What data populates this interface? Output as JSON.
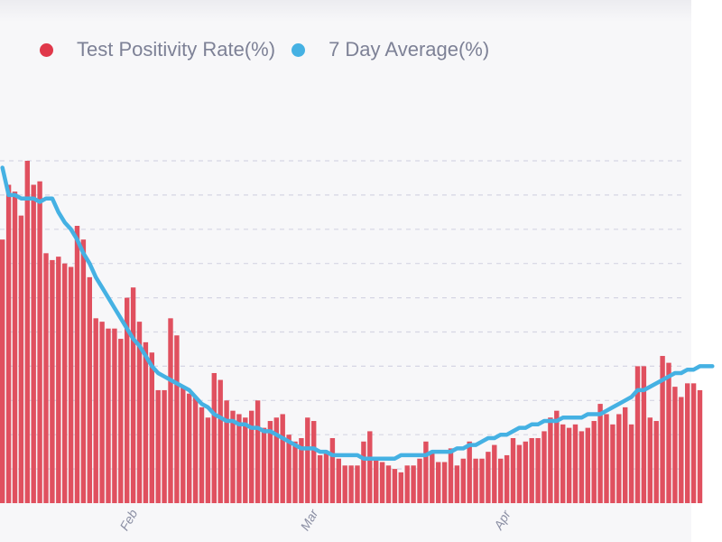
{
  "chart_data": {
    "type": "bar",
    "title": "",
    "xlabel": "",
    "ylabel": "",
    "y_units_note": "values expressed in gridline units (y-axis tick labels not visible)",
    "ylim": [
      0,
      10
    ],
    "grid": true,
    "legend_position": "top-left",
    "x_ticks": [
      {
        "label": "Feb",
        "index": 20
      },
      {
        "label": "Mar",
        "index": 49
      },
      {
        "label": "Apr",
        "index": 80
      }
    ],
    "series": [
      {
        "name": "Test Positivity Rate(%)",
        "kind": "bar",
        "color": "#e0505f",
        "values": [
          7.7,
          9.3,
          9.1,
          8.4,
          10.0,
          9.3,
          9.4,
          7.3,
          7.1,
          7.2,
          7.0,
          6.9,
          8.1,
          7.7,
          6.6,
          5.4,
          5.3,
          5.1,
          5.1,
          4.8,
          6.0,
          6.3,
          5.3,
          4.7,
          4.4,
          3.3,
          3.3,
          5.4,
          4.9,
          3.4,
          3.2,
          3.1,
          2.8,
          2.5,
          3.8,
          3.6,
          3.0,
          2.7,
          2.6,
          2.5,
          2.7,
          3.0,
          2.2,
          2.4,
          2.5,
          2.6,
          2.0,
          1.8,
          1.9,
          2.5,
          2.4,
          1.4,
          1.5,
          1.9,
          1.3,
          1.1,
          1.1,
          1.1,
          1.8,
          2.1,
          1.3,
          1.2,
          1.1,
          1.0,
          0.9,
          1.1,
          1.1,
          1.3,
          1.8,
          1.5,
          1.2,
          1.2,
          1.6,
          1.1,
          1.3,
          1.8,
          1.3,
          1.3,
          1.5,
          1.7,
          1.3,
          1.4,
          1.9,
          1.7,
          1.8,
          1.9,
          1.9,
          2.1,
          2.5,
          2.7,
          2.3,
          2.2,
          2.3,
          2.1,
          2.2,
          2.4,
          2.9,
          2.6,
          2.3,
          2.6,
          2.8,
          2.3,
          4.0,
          4.0,
          2.5,
          2.4,
          4.3,
          4.1,
          3.4,
          3.1,
          3.5,
          3.5,
          3.3
        ]
      },
      {
        "name": "7 Day Average(%)",
        "kind": "line",
        "color": "#45b1e3",
        "values": [
          9.8,
          9.0,
          9.0,
          8.9,
          8.9,
          8.9,
          8.8,
          8.9,
          8.9,
          8.5,
          8.2,
          8.0,
          7.7,
          7.3,
          7.0,
          6.6,
          6.3,
          6.0,
          5.7,
          5.4,
          5.1,
          4.8,
          4.6,
          4.3,
          4.0,
          3.8,
          3.7,
          3.6,
          3.5,
          3.4,
          3.3,
          3.1,
          2.9,
          2.8,
          2.6,
          2.5,
          2.4,
          2.4,
          2.3,
          2.3,
          2.2,
          2.2,
          2.1,
          2.1,
          2.0,
          1.9,
          1.8,
          1.7,
          1.6,
          1.6,
          1.6,
          1.5,
          1.5,
          1.4,
          1.4,
          1.4,
          1.4,
          1.4,
          1.3,
          1.3,
          1.3,
          1.3,
          1.3,
          1.3,
          1.4,
          1.4,
          1.4,
          1.4,
          1.4,
          1.5,
          1.5,
          1.5,
          1.5,
          1.6,
          1.6,
          1.7,
          1.7,
          1.8,
          1.9,
          1.9,
          2.0,
          2.0,
          2.1,
          2.2,
          2.2,
          2.3,
          2.3,
          2.4,
          2.4,
          2.4,
          2.5,
          2.5,
          2.5,
          2.5,
          2.6,
          2.6,
          2.6,
          2.7,
          2.8,
          2.9,
          3.0,
          3.1,
          3.3,
          3.3,
          3.4,
          3.5,
          3.6,
          3.7,
          3.8,
          3.8,
          3.9,
          3.9,
          4.0,
          4.0,
          4.0
        ]
      }
    ]
  },
  "legend": {
    "items": [
      {
        "label": "Test Positivity Rate(%)",
        "color": "#e0384a"
      },
      {
        "label": "7 Day Average(%)",
        "color": "#45b1e3"
      }
    ]
  }
}
